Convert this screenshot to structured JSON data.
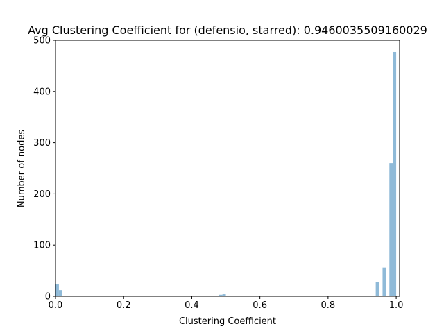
{
  "chart_data": {
    "type": "bar",
    "title": "Avg Clustering Coefficient for (defensio, starred): 0.9460035509160029",
    "xlabel": "Clustering Coefficient",
    "ylabel": "Number of nodes",
    "xlim": [
      0.0,
      1.01
    ],
    "ylim": [
      0,
      500
    ],
    "xticks": [
      "0.0",
      "0.2",
      "0.4",
      "0.6",
      "0.8",
      "1.0"
    ],
    "yticks": [
      "0",
      "100",
      "200",
      "300",
      "400",
      "500"
    ],
    "bin_width": 0.01,
    "bar_color": "#8fbad8",
    "grid": false,
    "legend": "none",
    "bins": [
      {
        "x": 0.0,
        "value": 23
      },
      {
        "x": 0.01,
        "value": 12
      },
      {
        "x": 0.48,
        "value": 3
      },
      {
        "x": 0.49,
        "value": 4
      },
      {
        "x": 0.94,
        "value": 28
      },
      {
        "x": 0.96,
        "value": 56
      },
      {
        "x": 0.98,
        "value": 260
      },
      {
        "x": 0.99,
        "value": 477
      }
    ]
  }
}
